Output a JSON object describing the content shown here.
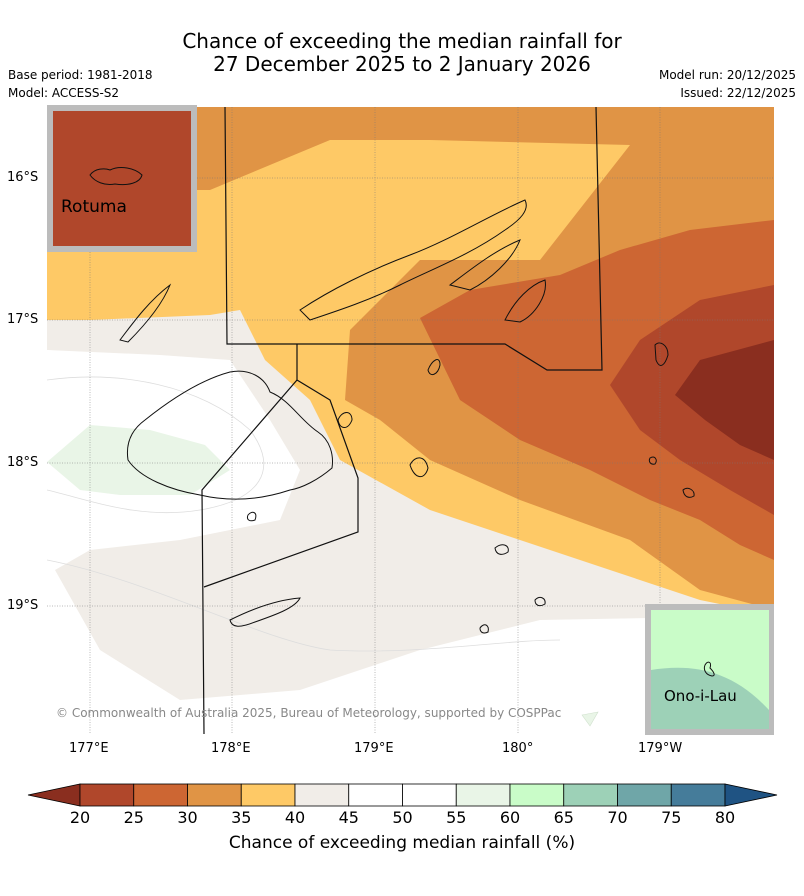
{
  "title": {
    "line1": "Chance of exceeding the median rainfall for",
    "line2": "27 December 2025 to 2 January 2026"
  },
  "meta_left": {
    "base_period": "Base period: 1981-2018",
    "model": "Model: ACCESS-S2"
  },
  "meta_right": {
    "model_run": "Model run: 20/12/2025",
    "issued": "Issued: 22/12/2025"
  },
  "lat_labels": [
    "16°S",
    "17°S",
    "18°S",
    "19°S"
  ],
  "lon_labels": [
    "177°E",
    "178°E",
    "179°E",
    "180°",
    "179°W"
  ],
  "insets": {
    "rotuma": "Rotuma",
    "ono_i_lau": "Ono-i-Lau"
  },
  "copyright": "© Commonwealth of Australia 2025, Bureau of Meteorology, supported by COSPPac",
  "colorbar": {
    "title": "Chance of exceeding median rainfall (%)",
    "ticks": [
      "20",
      "25",
      "30",
      "35",
      "40",
      "45",
      "50",
      "55",
      "60",
      "65",
      "70",
      "75",
      "80"
    ],
    "colors": [
      "#8a2e1f",
      "#b0472b",
      "#cd6633",
      "#e09445",
      "#fec966",
      "#f1ede8",
      "#ffffff",
      "#ffffff",
      "#e9f5e7",
      "#c9fcc8",
      "#9dd1b7",
      "#6fa6a8",
      "#457c9a",
      "#1f5383"
    ]
  }
}
